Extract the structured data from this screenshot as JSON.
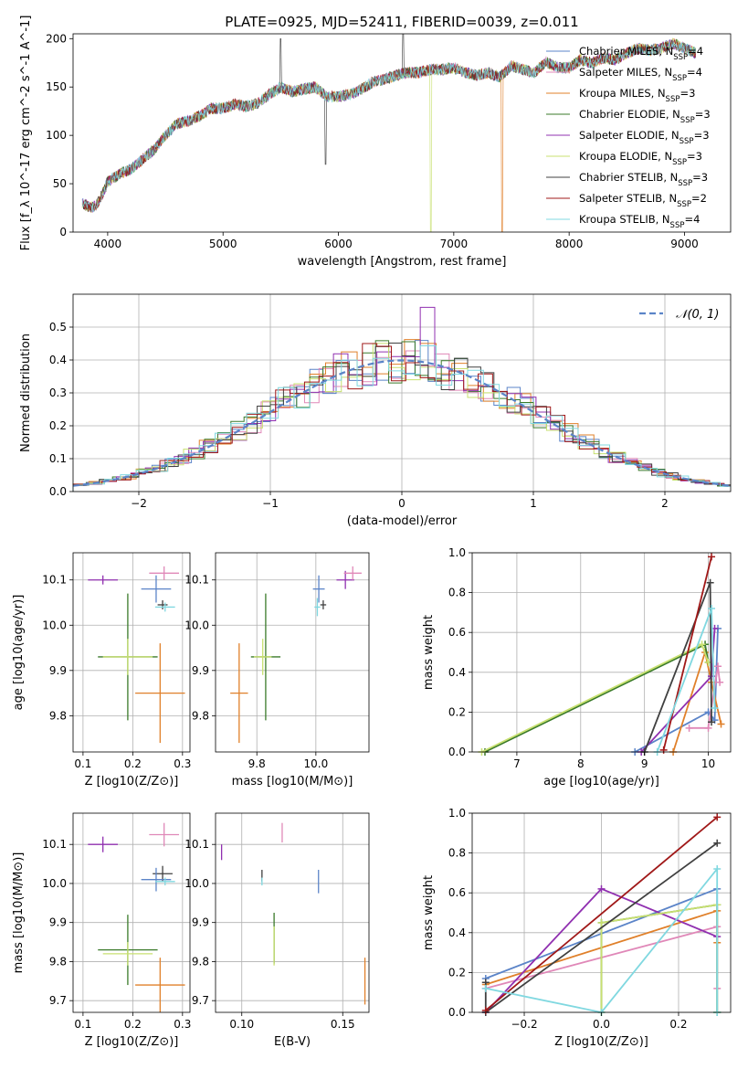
{
  "title": "PLATE=0925, MJD=52411, FIBERID=0039, z=0.011",
  "colors": {
    "Chabrier MILES": "#5b84c8",
    "Salpeter MILES": "#e088b8",
    "Kroupa MILES": "#e0802a",
    "Chabrier ELODIE": "#3a7a2a",
    "Salpeter ELODIE": "#9030b0",
    "Kroupa ELODIE": "#c8e070",
    "Chabrier STELIB": "#404040",
    "Salpeter STELIB": "#a01818",
    "Kroupa STELIB": "#80d8e0"
  },
  "chart_data": [
    {
      "id": "spectrum",
      "type": "line",
      "xlabel": "wavelength [Angstrom, rest frame]",
      "ylabel": "Flux [f_λ 10^-17 erg cm^-2 s^-1 A^-1]",
      "xlim": [
        3700,
        9400
      ],
      "ylim": [
        0,
        205
      ],
      "xticks": [
        4000,
        5000,
        6000,
        7000,
        8000,
        9000
      ],
      "yticks": [
        0,
        50,
        100,
        150,
        200
      ],
      "legend_position": "top-right",
      "legend": [
        {
          "model": "Chabrier MILES",
          "n": "4"
        },
        {
          "model": "Salpeter MILES",
          "n": "4"
        },
        {
          "model": "Kroupa MILES",
          "n": "3"
        },
        {
          "model": "Chabrier ELODIE",
          "n": "3"
        },
        {
          "model": "Salpeter ELODIE",
          "n": "3"
        },
        {
          "model": "Kroupa ELODIE",
          "n": "3"
        },
        {
          "model": "Chabrier STELIB",
          "n": "3"
        },
        {
          "model": "Salpeter STELIB",
          "n": "2"
        },
        {
          "model": "Kroupa STELIB",
          "n": "4"
        }
      ],
      "continuum": {
        "x": [
          3780,
          3850,
          3900,
          3950,
          4000,
          4100,
          4200,
          4300,
          4400,
          4500,
          4600,
          4700,
          4800,
          4900,
          5000,
          5100,
          5200,
          5300,
          5400,
          5500,
          5600,
          5700,
          5800,
          5900,
          6000,
          6100,
          6200,
          6300,
          6400,
          6500,
          6600,
          6700,
          6800,
          6900,
          7000,
          7100,
          7200,
          7300,
          7400,
          7500,
          7600,
          7700,
          7800,
          7900,
          8000,
          8100,
          8200,
          8300,
          8400,
          8500,
          8600,
          8700,
          8800,
          8900,
          9000,
          9100
        ],
        "y": [
          30,
          25,
          28,
          38,
          52,
          60,
          65,
          75,
          85,
          100,
          112,
          115,
          120,
          128,
          128,
          132,
          130,
          133,
          142,
          150,
          145,
          148,
          150,
          140,
          140,
          142,
          148,
          155,
          158,
          162,
          165,
          165,
          168,
          168,
          170,
          165,
          162,
          165,
          160,
          172,
          168,
          165,
          176,
          170,
          170,
          178,
          175,
          180,
          178,
          185,
          190,
          188,
          190,
          195,
          190,
          185
        ]
      }
    },
    {
      "id": "residuals",
      "type": "histogram",
      "xlabel": "(data-model)/error",
      "ylabel": "Normed distribution",
      "xlim": [
        -2.5,
        2.5
      ],
      "ylim": [
        0,
        0.6
      ],
      "xticks": [
        -2,
        -1,
        0,
        1,
        2
      ],
      "yticks": [
        0.0,
        0.1,
        0.2,
        0.3,
        0.4,
        0.5
      ],
      "legend_label": "𝒩(0, 1)",
      "legend_position": "top-right",
      "grid": true
    },
    {
      "id": "age-vs-Z",
      "type": "scatter",
      "xlabel": "Z [log10(Z/Z⊙)]",
      "ylabel": "age  [log10(age/yr)]",
      "xlim": [
        0.08,
        0.315
      ],
      "ylim": [
        9.72,
        10.16
      ],
      "xticks": [
        0.1,
        0.2,
        0.3
      ],
      "yticks": [
        9.8,
        9.9,
        10.0,
        10.1
      ],
      "grid": true,
      "points": [
        {
          "model": "Salpeter ELODIE",
          "x": 0.14,
          "y": 10.1,
          "xerr": 0.03,
          "yerr": 0.01
        },
        {
          "model": "Salpeter MILES",
          "x": 0.263,
          "y": 10.115,
          "xerr": 0.03,
          "yerr": 0.015
        },
        {
          "model": "Chabrier MILES",
          "x": 0.247,
          "y": 10.08,
          "xerr": 0.03,
          "yerr": 0.03
        },
        {
          "model": "Chabrier STELIB",
          "x": 0.26,
          "y": 10.045,
          "xerr": 0.01,
          "yerr": 0.01
        },
        {
          "model": "Kroupa STELIB",
          "x": 0.265,
          "y": 10.04,
          "xerr": 0.02,
          "yerr": 0.01
        },
        {
          "model": "Chabrier ELODIE",
          "x": 0.19,
          "y": 9.93,
          "xerr": 0.06,
          "yerr": 0.14
        },
        {
          "model": "Kroupa ELODIE",
          "x": 0.19,
          "y": 9.93,
          "xerr": 0.05,
          "yerr": 0.04
        },
        {
          "model": "Kroupa MILES",
          "x": 0.255,
          "y": 9.85,
          "xerr": 0.05,
          "yerr": 0.11
        }
      ]
    },
    {
      "id": "age-vs-mass",
      "type": "scatter",
      "xlabel": "mass [log10(M/M⊙)]",
      "ylabel": "",
      "xlim": [
        9.66,
        10.18
      ],
      "ylim": [
        9.72,
        10.16
      ],
      "xticks": [
        9.8,
        10.0
      ],
      "yticks": [
        9.8,
        9.9,
        10.0,
        10.1
      ],
      "grid": true,
      "points": [
        {
          "model": "Salpeter ELODIE",
          "x": 10.1,
          "y": 10.1,
          "xerr": 0.03,
          "yerr": 0.02
        },
        {
          "model": "Salpeter MILES",
          "x": 10.125,
          "y": 10.115,
          "xerr": 0.03,
          "yerr": 0.015
        },
        {
          "model": "Chabrier MILES",
          "x": 10.01,
          "y": 10.08,
          "xerr": 0.02,
          "yerr": 0.03
        },
        {
          "model": "Chabrier STELIB",
          "x": 10.025,
          "y": 10.045,
          "xerr": 0.01,
          "yerr": 0.01
        },
        {
          "model": "Kroupa STELIB",
          "x": 10.005,
          "y": 10.04,
          "xerr": 0.01,
          "yerr": 0.02
        },
        {
          "model": "Chabrier ELODIE",
          "x": 9.83,
          "y": 9.93,
          "xerr": 0.05,
          "yerr": 0.14
        },
        {
          "model": "Kroupa ELODIE",
          "x": 9.82,
          "y": 9.93,
          "xerr": 0.03,
          "yerr": 0.04
        },
        {
          "model": "Kroupa MILES",
          "x": 9.74,
          "y": 9.85,
          "xerr": 0.03,
          "yerr": 0.11
        }
      ]
    },
    {
      "id": "weight-vs-age",
      "type": "line",
      "xlabel": "age  [log10(age/yr)]",
      "ylabel": "mass weight",
      "xlim": [
        6.3,
        10.35
      ],
      "ylim": [
        0,
        1
      ],
      "xticks": [
        7,
        8,
        9,
        10
      ],
      "yticks": [
        0.0,
        0.2,
        0.4,
        0.6,
        0.8,
        1.0
      ],
      "grid": true,
      "series": [
        {
          "model": "Chabrier MILES",
          "x": [
            8.85,
            10.0,
            10.1,
            10.15
          ],
          "y": [
            0.0,
            0.2,
            0.16,
            0.62
          ]
        },
        {
          "model": "Salpeter MILES",
          "x": [
            9.7,
            10.0,
            10.15,
            10.18
          ],
          "y": [
            0.12,
            0.12,
            0.43,
            0.35
          ]
        },
        {
          "model": "Kroupa MILES",
          "x": [
            9.45,
            9.95,
            10.05,
            10.2
          ],
          "y": [
            0.0,
            0.5,
            0.35,
            0.14
          ]
        },
        {
          "model": "Chabrier ELODIE",
          "x": [
            6.5,
            9.95,
            10.0
          ],
          "y": [
            0.0,
            0.54,
            0.45
          ]
        },
        {
          "model": "Salpeter ELODIE",
          "x": [
            8.95,
            10.05,
            10.1
          ],
          "y": [
            0.0,
            0.38,
            0.62
          ]
        },
        {
          "model": "Kroupa ELODIE",
          "x": [
            6.45,
            9.9,
            10.0
          ],
          "y": [
            0.0,
            0.54,
            0.45
          ]
        },
        {
          "model": "Chabrier STELIB",
          "x": [
            9.0,
            10.03,
            10.05
          ],
          "y": [
            0.0,
            0.85,
            0.15
          ]
        },
        {
          "model": "Salpeter STELIB",
          "x": [
            9.3,
            10.05
          ],
          "y": [
            0.01,
            0.98
          ]
        },
        {
          "model": "Kroupa STELIB",
          "x": [
            9.2,
            10.05,
            10.1
          ],
          "y": [
            0.0,
            0.72,
            0.22
          ]
        }
      ]
    },
    {
      "id": "mass-vs-Z",
      "type": "scatter",
      "xlabel": "Z [log10(Z/Z⊙)]",
      "ylabel": "mass [log10(M/M⊙)]",
      "xlim": [
        0.08,
        0.315
      ],
      "ylim": [
        9.67,
        10.18
      ],
      "xticks": [
        0.1,
        0.2,
        0.3
      ],
      "yticks": [
        9.7,
        9.8,
        9.9,
        10.0,
        10.1
      ],
      "grid": true,
      "points": [
        {
          "model": "Salpeter ELODIE",
          "x": 0.14,
          "y": 10.1,
          "xerr": 0.03,
          "yerr": 0.02
        },
        {
          "model": "Salpeter MILES",
          "x": 0.263,
          "y": 10.125,
          "xerr": 0.03,
          "yerr": 0.03
        },
        {
          "model": "Chabrier STELIB",
          "x": 0.26,
          "y": 10.025,
          "xerr": 0.02,
          "yerr": 0.02
        },
        {
          "model": "Chabrier MILES",
          "x": 0.247,
          "y": 10.01,
          "xerr": 0.03,
          "yerr": 0.03
        },
        {
          "model": "Kroupa STELIB",
          "x": 0.265,
          "y": 10.005,
          "xerr": 0.02,
          "yerr": 0.01
        },
        {
          "model": "Chabrier ELODIE",
          "x": 0.19,
          "y": 9.83,
          "xerr": 0.06,
          "yerr": 0.09
        },
        {
          "model": "Kroupa ELODIE",
          "x": 0.19,
          "y": 9.82,
          "xerr": 0.05,
          "yerr": 0.03
        },
        {
          "model": "Kroupa MILES",
          "x": 0.255,
          "y": 9.74,
          "xerr": 0.05,
          "yerr": 0.07
        }
      ]
    },
    {
      "id": "mass-vs-EBV",
      "type": "scatter",
      "xlabel": "E(B-V)",
      "ylabel": "",
      "xlim": [
        0.087,
        0.163
      ],
      "ylim": [
        9.67,
        10.18
      ],
      "xticks": [
        0.1,
        0.15
      ],
      "yticks": [
        9.7,
        9.8,
        9.9,
        10.0,
        10.1
      ],
      "grid": true,
      "points": [
        {
          "model": "Salpeter ELODIE",
          "x": 0.09,
          "y": 10.08,
          "xerr": 0.0,
          "yerr": 0.02
        },
        {
          "model": "Salpeter MILES",
          "x": 0.12,
          "y": 10.13,
          "xerr": 0.0,
          "yerr": 0.025
        },
        {
          "model": "Chabrier STELIB",
          "x": 0.11,
          "y": 10.02,
          "xerr": 0.0,
          "yerr": 0.015
        },
        {
          "model": "Kroupa STELIB",
          "x": 0.11,
          "y": 10.005,
          "xerr": 0.0,
          "yerr": 0.01
        },
        {
          "model": "Chabrier MILES",
          "x": 0.138,
          "y": 10.005,
          "xerr": 0.0,
          "yerr": 0.03
        },
        {
          "model": "Chabrier ELODIE",
          "x": 0.116,
          "y": 9.86,
          "xerr": 0.0,
          "yerr": 0.065
        },
        {
          "model": "Kroupa ELODIE",
          "x": 0.116,
          "y": 9.84,
          "xerr": 0.0,
          "yerr": 0.05
        },
        {
          "model": "Kroupa MILES",
          "x": 0.161,
          "y": 9.75,
          "xerr": 0.0,
          "yerr": 0.06
        }
      ]
    },
    {
      "id": "weight-vs-Z",
      "type": "line",
      "xlabel": "Z [log10(Z/Z⊙)]",
      "ylabel": "mass weight",
      "xlim": [
        -0.335,
        0.335
      ],
      "ylim": [
        0,
        1
      ],
      "xticks": [
        -0.2,
        0.0,
        0.2
      ],
      "yticks": [
        0.0,
        0.2,
        0.4,
        0.6,
        0.8,
        1.0
      ],
      "grid": true,
      "series": [
        {
          "model": "Chabrier MILES",
          "x": [
            -0.3,
            0.3,
            0.3
          ],
          "y": [
            0.17,
            0.62,
            0.0
          ]
        },
        {
          "model": "Salpeter MILES",
          "x": [
            -0.3,
            0.3,
            0.3
          ],
          "y": [
            0.12,
            0.43,
            0.12
          ]
        },
        {
          "model": "Kroupa MILES",
          "x": [
            -0.3,
            0.3,
            0.3
          ],
          "y": [
            0.14,
            0.51,
            0.35
          ]
        },
        {
          "model": "Chabrier ELODIE",
          "x": [
            0.0,
            0.0,
            0.3,
            0.3
          ],
          "y": [
            0.0,
            0.45,
            0.54,
            0.0
          ]
        },
        {
          "model": "Salpeter ELODIE",
          "x": [
            -0.3,
            0.0,
            0.3
          ],
          "y": [
            0.0,
            0.62,
            0.38
          ]
        },
        {
          "model": "Kroupa ELODIE",
          "x": [
            0.0,
            0.0,
            0.3,
            0.3
          ],
          "y": [
            0.0,
            0.45,
            0.54,
            0.0
          ]
        },
        {
          "model": "Chabrier STELIB",
          "x": [
            -0.3,
            -0.3,
            0.3
          ],
          "y": [
            0.15,
            0.0,
            0.85
          ]
        },
        {
          "model": "Salpeter STELIB",
          "x": [
            -0.3,
            0.3
          ],
          "y": [
            0.01,
            0.98
          ]
        },
        {
          "model": "Kroupa STELIB",
          "x": [
            -0.3,
            0.0,
            0.3,
            0.3
          ],
          "y": [
            0.12,
            0.0,
            0.72,
            0.0
          ]
        }
      ]
    }
  ]
}
